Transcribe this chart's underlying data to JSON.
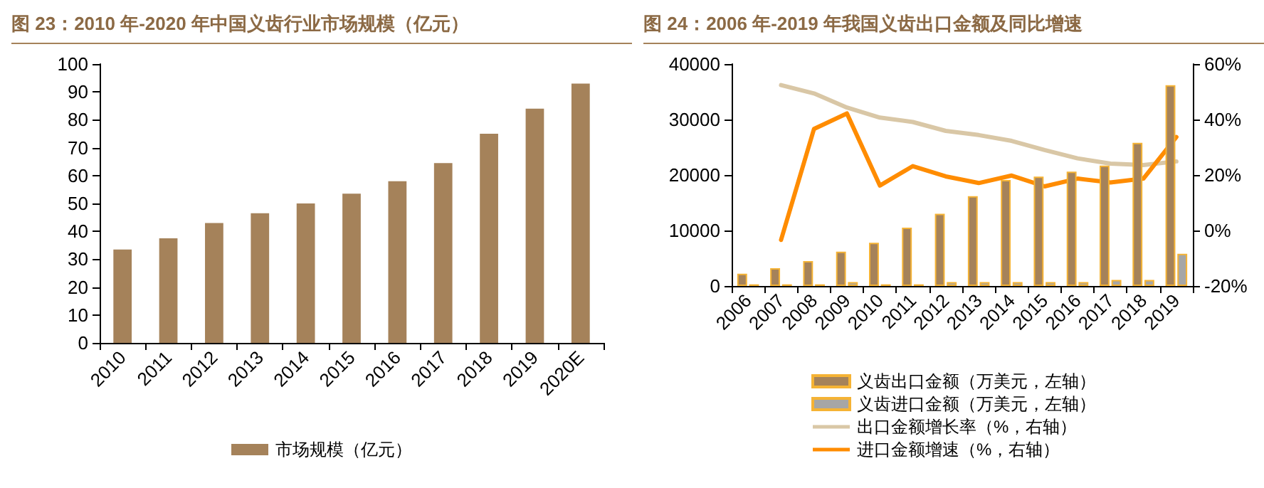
{
  "chart_data": [
    {
      "type": "bar",
      "title": "图 23：2010 年-2020 年中国义齿行业市场规模（亿元）",
      "categories": [
        "2010",
        "2011",
        "2012",
        "2013",
        "2014",
        "2015",
        "2016",
        "2017",
        "2018",
        "2019",
        "2020E"
      ],
      "series": [
        {
          "name": "市场规模（亿元）",
          "color": "#a5825a",
          "values": [
            33.5,
            37.5,
            43,
            46.5,
            50,
            53.5,
            58,
            64.5,
            75,
            84,
            93
          ]
        }
      ],
      "ylim": [
        0,
        100
      ],
      "yticks": [
        0,
        10,
        20,
        30,
        40,
        50,
        60,
        70,
        80,
        90,
        100
      ],
      "grid": false,
      "legend": "bottom"
    },
    {
      "type": "bar",
      "title": "图 24：2006 年-2019 年我国义齿出口金额及同比增速",
      "categories": [
        "2006",
        "2007",
        "2008",
        "2009",
        "2010",
        "2011",
        "2012",
        "2013",
        "2014",
        "2015",
        "2016",
        "2017",
        "2018",
        "2019"
      ],
      "series": [
        {
          "name": "义齿出口金额（万美元，左轴）",
          "color": "#a5825a",
          "values": [
            2200,
            3200,
            4500,
            6200,
            7800,
            10500,
            13000,
            16200,
            19100,
            19700,
            20600,
            21700,
            25800,
            36200
          ]
        },
        {
          "name": "义齿进口金额（万美元，左轴）",
          "color": "#a6a6a6",
          "values": [
            300,
            300,
            300,
            700,
            300,
            300,
            700,
            700,
            700,
            700,
            700,
            1100,
            1100,
            5800
          ]
        },
        {
          "name": "出口金额增长率（%，右轴）",
          "type": "line",
          "axis": "y2",
          "color": "#d9c7a6",
          "values": [
            null,
            52.4,
            49.4,
            44.3,
            40.7,
            39.1,
            35.9,
            34.4,
            32.3,
            29.0,
            26.0,
            24.1,
            23.6,
            24.9
          ]
        },
        {
          "name": "进口金额增速（%，右轴）",
          "type": "line",
          "axis": "y2",
          "color": "#ff8c00",
          "values": [
            null,
            -3.4,
            36.6,
            42.2,
            16.2,
            23.2,
            19.5,
            17.1,
            19.8,
            15.9,
            18.7,
            17.3,
            18.7,
            33.7
          ]
        }
      ],
      "ylim": [
        0,
        40000
      ],
      "yticks": [
        0,
        10000,
        20000,
        30000,
        40000
      ],
      "y2lim": [
        -20,
        60
      ],
      "y2ticks": [
        {
          "value": -20,
          "label": "-20%"
        },
        {
          "value": 0,
          "label": "0%"
        },
        {
          "value": 20,
          "label": "20%"
        },
        {
          "value": 40,
          "label": "40%"
        },
        {
          "value": 60,
          "label": "60%"
        }
      ],
      "marker": "none",
      "grid": false,
      "legend": "bottom"
    }
  ]
}
